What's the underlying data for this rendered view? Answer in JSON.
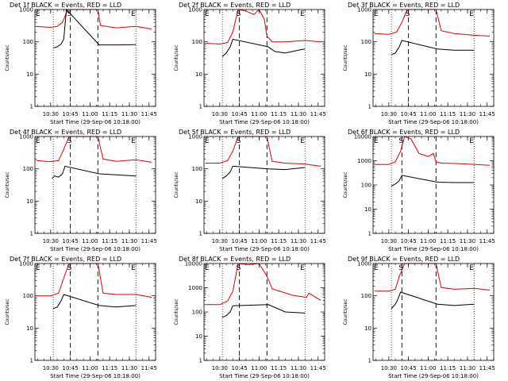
{
  "chart_data": [
    {
      "type": "line",
      "title": "Det 1f BLACK = Events, RED = LLD",
      "xlabel": "Start Time (29-Sep-06 10:18:00)",
      "ylabel": "Counts/sec",
      "yscale": "log",
      "ylim": [
        1,
        1000
      ],
      "ytick_labels": [
        "1",
        "10",
        "100",
        "1000"
      ],
      "xtick_labels": [
        "10:30",
        "10:45",
        "11:00",
        "11:15",
        "11:30",
        "11:45"
      ],
      "annotations": [
        "E",
        "S",
        "E"
      ],
      "dotted_marks": [
        "10:32",
        "11:35"
      ],
      "dashed_marks": [
        "10:45",
        "11:06"
      ],
      "line_colors": {
        "black": "#000000",
        "red": "#e00000"
      },
      "series": [
        {
          "name": "RED = LLD",
          "color": "#e00000",
          "x": [
            "10:19",
            "10:30",
            "10:35",
            "10:39",
            "10:43",
            "11:06",
            "11:08",
            "11:20",
            "11:35",
            "11:47"
          ],
          "values": [
            300,
            280,
            300,
            400,
            1000,
            1000,
            320,
            270,
            300,
            250
          ]
        },
        {
          "name": "BLACK = Events",
          "color": "#000000",
          "x": [
            "10:32",
            "10:35",
            "10:38",
            "10:40",
            "10:42",
            "11:07",
            "11:20",
            "11:35"
          ],
          "values": [
            65,
            70,
            85,
            120,
            1000,
            80,
            80,
            82
          ]
        }
      ]
    },
    {
      "type": "line",
      "title": "Det 2f BLACK = Events, RED = LLD",
      "xlabel": "Start Time (29-Sep-06 10:18:00)",
      "ylabel": "Counts/sec",
      "yscale": "log",
      "ylim": [
        1,
        1000
      ],
      "ytick_labels": [
        "1",
        "10",
        "100",
        "1000"
      ],
      "xtick_labels": [
        "10:30",
        "10:45",
        "11:00",
        "11:15",
        "11:30",
        "11:45"
      ],
      "annotations": [
        "E",
        "S",
        "E"
      ],
      "dotted_marks": [
        "10:32",
        "11:35"
      ],
      "dashed_marks": [
        "10:45",
        "11:06"
      ],
      "line_colors": {
        "black": "#000000",
        "red": "#e00000"
      },
      "series": [
        {
          "name": "RED = LLD",
          "color": "#e00000",
          "x": [
            "10:19",
            "10:30",
            "10:36",
            "10:40",
            "10:44",
            "10:50",
            "10:56",
            "11:00",
            "11:04",
            "11:06",
            "11:10",
            "11:20",
            "11:35",
            "11:47"
          ],
          "values": [
            90,
            85,
            95,
            200,
            1000,
            900,
            700,
            1000,
            500,
            150,
            100,
            100,
            110,
            100
          ]
        },
        {
          "name": "BLACK = Events",
          "color": "#000000",
          "x": [
            "10:32",
            "10:35",
            "10:38",
            "10:40",
            "11:07",
            "11:12",
            "11:20",
            "11:30",
            "11:35"
          ],
          "values": [
            35,
            45,
            70,
            120,
            70,
            50,
            45,
            55,
            60
          ]
        }
      ]
    },
    {
      "type": "line",
      "title": "Det 3f BLACK = Events, RED = LLD",
      "xlabel": "Start Time (29-Sep-06 10:18:00)",
      "ylabel": "Counts/sec",
      "yscale": "log",
      "ylim": [
        1,
        1000
      ],
      "ytick_labels": [
        "1",
        "10",
        "100",
        "1000"
      ],
      "xtick_labels": [
        "10:30",
        "10:45",
        "11:00",
        "11:15",
        "11:30",
        "11:45"
      ],
      "annotations": [
        "E",
        "S",
        "E"
      ],
      "dotted_marks": [
        "10:32",
        "11:35"
      ],
      "dashed_marks": [
        "10:45",
        "11:06"
      ],
      "line_colors": {
        "black": "#000000",
        "red": "#e00000"
      },
      "series": [
        {
          "name": "RED = LLD",
          "color": "#e00000",
          "x": [
            "10:19",
            "10:30",
            "10:36",
            "10:40",
            "10:44",
            "11:06",
            "11:10",
            "11:20",
            "11:35",
            "11:47"
          ],
          "values": [
            180,
            170,
            200,
            400,
            1000,
            1000,
            220,
            180,
            160,
            150
          ]
        },
        {
          "name": "BLACK = Events",
          "color": "#000000",
          "x": [
            "10:32",
            "10:35",
            "10:38",
            "10:40",
            "11:07",
            "11:20",
            "11:35"
          ],
          "values": [
            40,
            45,
            70,
            110,
            60,
            55,
            55
          ]
        }
      ]
    },
    {
      "type": "line",
      "title": "Det 4f BLACK = Events, RED = LLD",
      "xlabel": "Start Time (29-Sep-06 10:18:00)",
      "ylabel": "Counts/sec",
      "yscale": "log",
      "ylim": [
        1,
        1000
      ],
      "ytick_labels": [
        "1",
        "10",
        "100",
        "1000"
      ],
      "xtick_labels": [
        "10:30",
        "10:45",
        "11:00",
        "11:15",
        "11:30",
        "11:45"
      ],
      "annotations": [
        "E",
        "S",
        "E"
      ],
      "dotted_marks": [
        "10:32",
        "11:35"
      ],
      "dashed_marks": [
        "10:45",
        "11:06"
      ],
      "line_colors": {
        "black": "#000000",
        "red": "#e00000"
      },
      "series": [
        {
          "name": "RED = LLD",
          "color": "#e00000",
          "x": [
            "10:19",
            "10:30",
            "10:36",
            "10:40",
            "10:44",
            "11:06",
            "11:10",
            "11:20",
            "11:35",
            "11:47"
          ],
          "values": [
            180,
            165,
            180,
            400,
            1000,
            1000,
            200,
            170,
            190,
            160
          ]
        },
        {
          "name": "BLACK = Events",
          "color": "#000000",
          "x": [
            "10:31",
            "10:33",
            "10:36",
            "10:39",
            "10:41",
            "11:07",
            "11:20",
            "11:35"
          ],
          "values": [
            50,
            60,
            55,
            70,
            120,
            70,
            65,
            60
          ]
        }
      ]
    },
    {
      "type": "line",
      "title": "Det 5f BLACK = Events, RED = LLD",
      "xlabel": "Start Time (29-Sep-06 10:18:00)",
      "ylabel": "Counts/sec",
      "yscale": "log",
      "ylim": [
        1,
        1000
      ],
      "ytick_labels": [
        "1",
        "10",
        "100",
        "1000"
      ],
      "xtick_labels": [
        "10:30",
        "10:45",
        "11:00",
        "11:15",
        "11:30",
        "11:45"
      ],
      "annotations": [
        "E",
        "S",
        "E"
      ],
      "dotted_marks": [
        "10:32",
        "11:35"
      ],
      "dashed_marks": [
        "10:45",
        "11:06"
      ],
      "line_colors": {
        "black": "#000000",
        "red": "#e00000"
      },
      "series": [
        {
          "name": "RED = LLD",
          "color": "#e00000",
          "x": [
            "10:19",
            "10:30",
            "10:36",
            "10:40",
            "10:44",
            "11:06",
            "11:10",
            "11:20",
            "11:35",
            "11:47"
          ],
          "values": [
            150,
            150,
            180,
            350,
            1000,
            1000,
            170,
            150,
            140,
            120
          ]
        },
        {
          "name": "BLACK = Events",
          "color": "#000000",
          "x": [
            "10:32",
            "10:35",
            "10:38",
            "10:40",
            "11:07",
            "11:20",
            "11:35"
          ],
          "values": [
            50,
            60,
            80,
            120,
            100,
            95,
            110
          ]
        }
      ]
    },
    {
      "type": "line",
      "title": "Det 6f BLACK = Events, RED = LLD",
      "xlabel": "Start Time (29-Sep-06 10:18:00)",
      "ylabel": "Counts/sec",
      "yscale": "log",
      "ylim": [
        1,
        10000
      ],
      "ytick_labels": [
        "1",
        "10",
        "100",
        "1000",
        "10000"
      ],
      "xtick_labels": [
        "10:30",
        "10:45",
        "11:00",
        "11:15",
        "11:30",
        "11:45"
      ],
      "annotations": [
        "E",
        "S",
        "E"
      ],
      "dotted_marks": [
        "10:32",
        "11:35"
      ],
      "dashed_marks": [
        "10:40",
        "11:06"
      ],
      "line_colors": {
        "black": "#000000",
        "red": "#e00000"
      },
      "series": [
        {
          "name": "RED = LLD",
          "color": "#e00000",
          "x": [
            "10:19",
            "10:30",
            "10:35",
            "10:39",
            "10:42",
            "10:47",
            "10:53",
            "11:00",
            "11:04",
            "11:06",
            "11:10",
            "11:25",
            "11:47"
          ],
          "values": [
            700,
            700,
            900,
            2500,
            10000,
            8000,
            2000,
            1500,
            2000,
            900,
            800,
            750,
            650
          ]
        },
        {
          "name": "BLACK = Events",
          "color": "#000000",
          "x": [
            "10:32",
            "10:35",
            "10:38",
            "10:40",
            "11:07",
            "11:20",
            "11:35"
          ],
          "values": [
            90,
            110,
            150,
            250,
            130,
            125,
            125
          ]
        }
      ]
    },
    {
      "type": "line",
      "title": "Det 7f BLACK = Events, RED = LLD",
      "xlabel": "Start Time (29-Sep-06 10:18:00)",
      "ylabel": "Counts/sec",
      "yscale": "log",
      "ylim": [
        1,
        1000
      ],
      "ytick_labels": [
        "1",
        "10",
        "100",
        "1000"
      ],
      "xtick_labels": [
        "10:30",
        "10:45",
        "11:00",
        "11:15",
        "11:30",
        "11:45"
      ],
      "annotations": [
        "E",
        "S",
        "E"
      ],
      "dotted_marks": [
        "10:32",
        "11:35"
      ],
      "dashed_marks": [
        "10:45",
        "11:06"
      ],
      "line_colors": {
        "black": "#000000",
        "red": "#e00000"
      },
      "series": [
        {
          "name": "RED = LLD",
          "color": "#e00000",
          "x": [
            "10:19",
            "10:30",
            "10:36",
            "10:40",
            "10:44",
            "11:06",
            "11:10",
            "11:20",
            "11:35",
            "11:47"
          ],
          "values": [
            100,
            100,
            120,
            350,
            1000,
            1000,
            120,
            110,
            110,
            90
          ]
        },
        {
          "name": "BLACK = Events",
          "color": "#000000",
          "x": [
            "10:32",
            "10:35",
            "10:38",
            "10:40",
            "11:07",
            "11:20",
            "11:35"
          ],
          "values": [
            40,
            45,
            70,
            110,
            50,
            45,
            50
          ]
        }
      ]
    },
    {
      "type": "line",
      "title": "Det 8f BLACK = Events, RED = LLD",
      "xlabel": "Start Time (29-Sep-06 10:18:00)",
      "ylabel": "Counts/sec",
      "yscale": "log",
      "ylim": [
        1,
        10000
      ],
      "ytick_labels": [
        "1",
        "10",
        "100",
        "1000",
        "10000"
      ],
      "xtick_labels": [
        "10:30",
        "10:45",
        "11:00",
        "11:15",
        "11:30",
        "11:45"
      ],
      "annotations": [
        "E",
        "S",
        "E"
      ],
      "dotted_marks": [
        "10:32",
        "11:35"
      ],
      "dashed_marks": [
        "10:45",
        "11:06"
      ],
      "line_colors": {
        "black": "#000000",
        "red": "#e00000"
      },
      "series": [
        {
          "name": "RED = LLD",
          "color": "#e00000",
          "x": [
            "10:19",
            "10:30",
            "10:36",
            "10:40",
            "10:44",
            "10:52",
            "11:00",
            "11:06",
            "11:10",
            "11:25",
            "11:36",
            "11:38",
            "11:47"
          ],
          "values": [
            200,
            200,
            280,
            700,
            10000,
            9000,
            10000,
            3000,
            900,
            500,
            400,
            600,
            300
          ]
        },
        {
          "name": "BLACK = Events",
          "color": "#000000",
          "x": [
            "10:32",
            "10:35",
            "10:38",
            "10:40",
            "11:07",
            "11:20",
            "11:35"
          ],
          "values": [
            60,
            70,
            100,
            180,
            200,
            100,
            90
          ]
        }
      ]
    },
    {
      "type": "line",
      "title": "Det 9f BLACK = Events, RED = LLD",
      "xlabel": "Start Time (29-Sep-06 10:18:00)",
      "ylabel": "Counts/sec",
      "yscale": "log",
      "ylim": [
        1,
        1000
      ],
      "ytick_labels": [
        "1",
        "10",
        "100",
        "1000"
      ],
      "xtick_labels": [
        "10:30",
        "10:45",
        "11:00",
        "11:15",
        "11:30",
        "11:45"
      ],
      "annotations": [
        "E",
        "S",
        "E"
      ],
      "dotted_marks": [
        "10:32",
        "11:35"
      ],
      "dashed_marks": [
        "10:40",
        "11:06"
      ],
      "line_colors": {
        "black": "#000000",
        "red": "#e00000"
      },
      "series": [
        {
          "name": "RED = LLD",
          "color": "#e00000",
          "x": [
            "10:19",
            "10:30",
            "10:35",
            "10:38",
            "10:42",
            "11:06",
            "11:10",
            "11:20",
            "11:35",
            "11:47"
          ],
          "values": [
            140,
            140,
            160,
            400,
            1000,
            1000,
            180,
            160,
            170,
            150
          ]
        },
        {
          "name": "BLACK = Events",
          "color": "#000000",
          "x": [
            "10:32",
            "10:35",
            "10:37",
            "10:39",
            "11:07",
            "11:20",
            "11:35"
          ],
          "values": [
            40,
            55,
            80,
            130,
            55,
            50,
            55
          ]
        }
      ]
    }
  ]
}
